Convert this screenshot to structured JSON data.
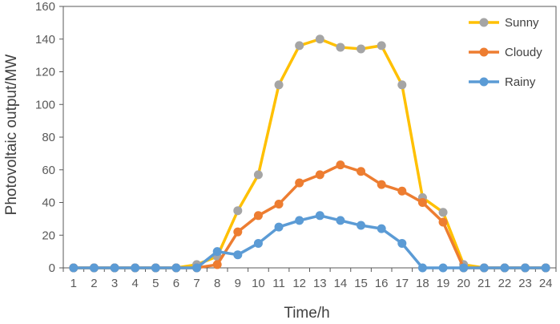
{
  "chart_data": {
    "type": "line",
    "title": "",
    "xlabel": "Time/h",
    "ylabel": "Photovoltaic output/MW",
    "x": [
      1,
      2,
      3,
      4,
      5,
      6,
      7,
      8,
      9,
      10,
      11,
      12,
      13,
      14,
      15,
      16,
      17,
      18,
      19,
      20,
      21,
      22,
      23,
      24
    ],
    "x_tick_labels": [
      "1",
      "2",
      "3",
      "4",
      "5",
      "6",
      "7",
      "8",
      "9",
      "10",
      "11",
      "12",
      "13",
      "14",
      "15",
      "16",
      "17",
      "18",
      "19",
      "20",
      "21",
      "22",
      "23",
      "24"
    ],
    "ylim": [
      0,
      160
    ],
    "y_ticks": [
      0,
      20,
      40,
      60,
      80,
      100,
      120,
      140,
      160
    ],
    "y_tick_labels": [
      "0",
      "20",
      "40",
      "60",
      "80",
      "100",
      "120",
      "140",
      "160"
    ],
    "grid": false,
    "legend_position": "top-right",
    "series": [
      {
        "name": "Sunny",
        "line_color": "#FFC000",
        "marker_color": "#A5A5A5",
        "values": [
          0,
          0,
          0,
          0,
          0,
          0,
          2,
          7,
          35,
          57,
          112,
          136,
          140,
          135,
          134,
          136,
          112,
          43,
          34,
          2,
          0,
          0,
          0,
          0
        ]
      },
      {
        "name": "Cloudy",
        "line_color": "#ED7D31",
        "marker_color": "#ED7D31",
        "values": [
          0,
          0,
          0,
          0,
          0,
          0,
          0,
          2,
          22,
          32,
          39,
          52,
          57,
          63,
          59,
          51,
          47,
          40,
          28,
          0,
          0,
          0,
          0,
          0
        ]
      },
      {
        "name": "Rainy",
        "line_color": "#5B9BD5",
        "marker_color": "#5B9BD5",
        "values": [
          0,
          0,
          0,
          0,
          0,
          0,
          0,
          10,
          8,
          15,
          25,
          29,
          32,
          29,
          26,
          24,
          15,
          0,
          0,
          0,
          0,
          0,
          0,
          0
        ]
      }
    ]
  }
}
